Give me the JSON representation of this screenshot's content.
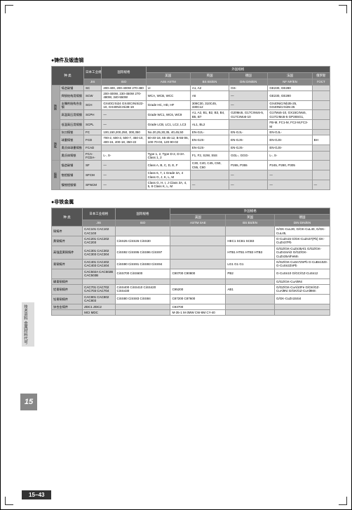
{
  "section1_title": "●铸件及锻造钢",
  "section2_title": "●非铁金属",
  "tab_text": "技术资料 金属材料代号",
  "tab_num": "15",
  "footer": "15−43",
  "colors": {
    "th_bg": "#555",
    "sub_th_bg": "#777",
    "cat_bg": "#aaa",
    "name_bg": "#ccc",
    "gray_bg": "#d8d8d8",
    "white_bg": "#fff",
    "tab_bg": "#ddd",
    "tabnum_bg": "#888",
    "footer_bg": "#333"
  },
  "t1": {
    "headers": {
      "top": [
        "种 类",
        "日本工业规格",
        "国际规格",
        "外国规格"
      ],
      "countries": [
        "美国",
        "英国",
        "德国",
        "法国",
        "俄罗斯"
      ],
      "sub": [
        "JIS",
        "ISO",
        "AISI ASTM",
        "BS BS/EN",
        "DIN DIN/EN",
        "NF NF/EN",
        "ГОСТ"
      ]
    },
    "rows": [
      {
        "cat": "铸钢",
        "name": "铸造碳钢",
        "jis": "SC",
        "iso": "200-400, 200-400W 270-480",
        "c1": "U-",
        "c2": "A1, A2",
        "c3": "GS-",
        "c4": "GE230, GE280",
        "c5": ""
      },
      {
        "name": "焊接结构用铸钢",
        "jis": "SCW",
        "iso": "200-400W, 230-450W 270-480W, 340-550W",
        "c1": "WCA, WCB, WCC",
        "c2": "A6",
        "c3": "—",
        "c4": "GE230, GE280",
        "c5": ""
      },
      {
        "name": "支撑剂结构合金钢",
        "jis": "SCH",
        "iso": "GX40CrSi24 GX40CrNiSi22-10, GX40NiCrSi38-19",
        "c1": "Grade HC, HD, HF",
        "c2": "309C30, 310C45, 330C12",
        "c3": "—",
        "c4": "GX40NiCrNb35-25, GX40NiCrSi35-25",
        "c5": ""
      },
      {
        "name": "高温高压用铸钢",
        "jis": "SCPH",
        "iso": "—",
        "c1": "Grade WC1, WC6, WC9",
        "c2": "A1, A2, B1, B2, B3, B4, B5, B7",
        "c3": "G20Mo5, G17CrMo5-5, G17CrMo5-10",
        "c4": "G17Mo5-10, GX15CrMo5, G17CrMo5-5 GP28SG1,",
        "c5": ""
      },
      {
        "name": "低温高压用铸钢",
        "jis": "SCPL",
        "iso": "—",
        "c1": "Grade LCB, LC1, LC2, LC3",
        "c2": "AL1, BL2",
        "c3": "",
        "c4": "FB-M, FC1-M, FC2-M,FC3-M",
        "c5": ""
      },
      {
        "cat": "铸铁",
        "name": "灰口铸铁",
        "jis": "FC",
        "iso": "100,150,200,250, 300,350",
        "c1": "No.20,25,30,35, 40,45,50",
        "c2": "EN-GJL-",
        "c3": "EN-GJL-",
        "c4": "EN-GJL-",
        "c5": ""
      },
      {
        "name": "球墨铸铁",
        "jis": "FCD",
        "iso": "700-2, 600-3, 500-7, 450-10, 400-15, 400-18, 350-22",
        "c1": "60-40-18, 65-45-12, B-55-06, 100-70-03, 120-90-02",
        "c2": "EN-GJS-",
        "c3": "EN-GJS-",
        "c4": "EN-GJS-",
        "c5": "BH"
      },
      {
        "name": "奥氏体球墨铸铁",
        "jis": "FCAD",
        "iso": "",
        "c1": "",
        "c2": "EN-GJS-",
        "c3": "EN-GJS-",
        "c4": "EN-GJS-",
        "c5": ""
      },
      {
        "name": "奥氏体铸铁",
        "jis": "FCA- FCDA-",
        "iso": "L-, S-",
        "c1": "Type 1, 2, Type D-2, D-3A Class 1, 2",
        "c2": "F1, F2, S2W, S5S",
        "c3": "GGL-, GGG-",
        "c4": "L-, S-",
        "c5": ""
      },
      {
        "cat": "锻钢",
        "name": "锻造碳钢",
        "jis": "SF",
        "iso": "—",
        "c1": "Class A, B, C, D, E, F",
        "c2": "C30, C40, C45, C50, C55, C60",
        "c3": "P265, P355",
        "c4": "P245, P280, P305",
        "c5": ""
      },
      {
        "name": "铬钼锻钢",
        "jis": "SFCM",
        "iso": "—",
        "c1": "Class 6, 7, 1 Grade 3A, 4 Class G, J, K, L, M",
        "c2": "",
        "c3": "—",
        "c4": "—",
        "c5": ""
      },
      {
        "name": "镍铬钼锻钢",
        "jis": "SFNCM",
        "iso": "—",
        "c1": "Class G, H, I, J Class 3A, 4, 5, 8 Class K, L, M",
        "c2": "—",
        "c3": "—",
        "c4": "—",
        "c5": "—"
      }
    ]
  },
  "t2": {
    "headers": {
      "top": [
        "种 类",
        "日本工业规格",
        "国际规格",
        "外国规格"
      ],
      "countries": [
        "美国",
        "英国",
        "德国"
      ],
      "sub": [
        "JIS",
        "ISO",
        "ASTM SAE",
        "BS BS/EN",
        "DIN DIN/EN"
      ]
    },
    "rows": [
      {
        "name": "铜铸件",
        "jis": "CAC101 CAC102 CAC103",
        "iso": "",
        "c1": "",
        "c2": "",
        "c3": "G/GK-CuL30, G/GK-CuL40, G/GK-CuL45,"
      },
      {
        "name": "黄铜铸件",
        "jis": "CAC201 CAC202 CAC203",
        "iso": "CiSS25 CiSS26 CiSS30",
        "c1": "",
        "c2": "HEC1 SCB1 SCB3",
        "c3": "G-CuZn15 G/GK-CuZn37(Pb) GK-CuZn37Pb"
      },
      {
        "name": "高强度黄铜铸件",
        "jis": "CAC301 CAC302 CAC303 CAC304",
        "iso": "CiSS92 CiSS95 CiSS96 CiSS97",
        "c1": "",
        "c2": "HTB1 HTB1 HTB3 HTB3",
        "c3": "G/GZ/GK-CuZn35Al1 G/GZ/GK-CuZn34Al2 G/GZ/GK-CuZn35AlFeMn"
      },
      {
        "name": "青铜铸件",
        "jis": "CAC401 CAC402 CAC403 CAC404",
        "iso": "CiSS90 CiSS91 CiSS93 CiSS94",
        "c1": "",
        "c2": "LG1 G1 G1",
        "c3": "G/GZ/GK-CuSn7ZnPb G-CuBn10Zn G-CuSn2ZnPb"
      },
      {
        "name": "",
        "jis": "CAC502A CAC502B CAC503B",
        "iso": "CiSS700 CiSS600",
        "c1": "C90700 C90800",
        "c2": "PB2",
        "c3": "G-CuSn10 G/GC/GZ-CuSn12"
      },
      {
        "name": "磷青铜铸件",
        "jis": "",
        "iso": "",
        "c1": "",
        "c2": "",
        "c3": "G/GZ/GK-CuAl9Ni"
      },
      {
        "name": "铝青铜铸件",
        "jis": "CAC701 CAC702 CAC703 CAC704",
        "iso": "CiSS400 CiSS410 CiSS420 CiSS430",
        "c1": "C95200",
        "c2": "AB1",
        "c3": "G/GZ/GK-CuAl10Fe G/GK/GZ-CuAl9Ni G/GK/GZ-CuAl9Mn"
      },
      {
        "name": "铅青铜铸件",
        "jis": "CAC801 CAC802 CAC803",
        "iso": "CiSS80 CiSS83 CiSS84",
        "c1": "C87200 C87600",
        "c2": "",
        "c3": "G/GK-CuZn15Si4"
      },
      {
        "name": "锌合金铸件",
        "jis": "ZDC1 ZDC2",
        "iso": "",
        "c1": "C93700",
        "c2": "",
        "c3": ""
      },
      {
        "name": "",
        "jis": "MCI MDC",
        "iso": "",
        "c1": "M-35-1 M-3MW CW-8M CY-40",
        "c2": "",
        "c3": ""
      }
    ]
  }
}
